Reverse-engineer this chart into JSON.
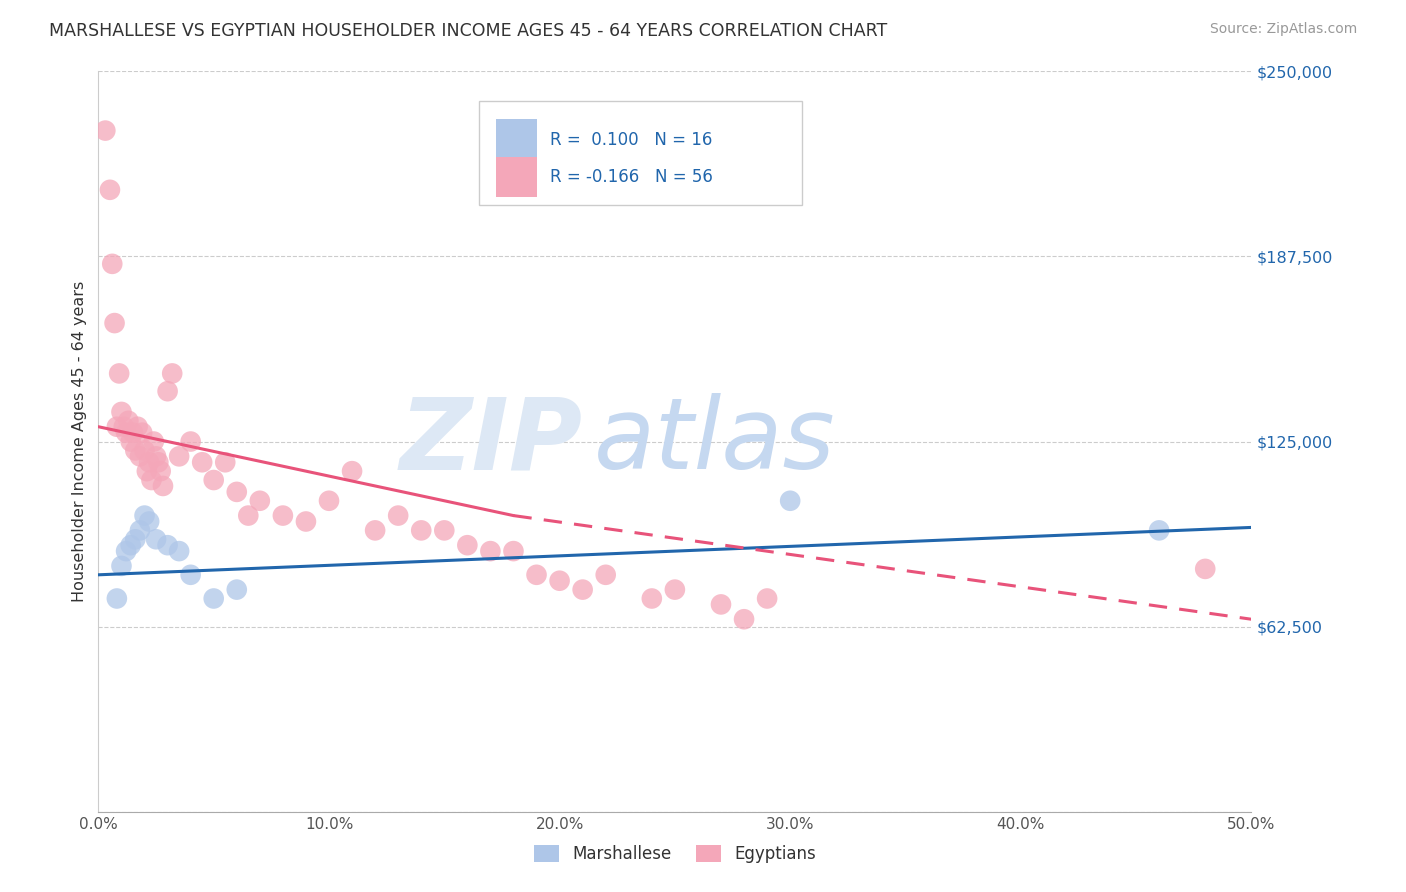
{
  "title": "MARSHALLESE VS EGYPTIAN HOUSEHOLDER INCOME AGES 45 - 64 YEARS CORRELATION CHART",
  "source": "Source: ZipAtlas.com",
  "ylabel": "Householder Income Ages 45 - 64 years",
  "xlim": [
    0.0,
    50.0
  ],
  "ylim": [
    0,
    250000
  ],
  "yticks": [
    0,
    62500,
    125000,
    187500,
    250000
  ],
  "ytick_labels": [
    "",
    "$62,500",
    "$125,000",
    "$187,500",
    "$250,000"
  ],
  "xticks": [
    0.0,
    10.0,
    20.0,
    30.0,
    40.0,
    50.0
  ],
  "xtick_labels": [
    "0.0%",
    "10.0%",
    "20.0%",
    "30.0%",
    "40.0%",
    "50.0%"
  ],
  "marshallese_label": "Marshallese",
  "egyptians_label": "Egyptians",
  "R_marshallese": 0.1,
  "N_marshallese": 16,
  "R_egyptians": -0.166,
  "N_egyptians": 56,
  "dot_color_blue": "#aec6e8",
  "dot_color_pink": "#f4a7b9",
  "line_color_blue": "#2166ac",
  "line_color_pink": "#e8537a",
  "watermark_zip_color": "#dde8f5",
  "watermark_atlas_color": "#c5d8f0",
  "background_color": "#ffffff",
  "marshallese_x": [
    0.8,
    1.0,
    1.2,
    1.4,
    1.6,
    1.8,
    2.0,
    2.2,
    2.5,
    3.0,
    3.5,
    4.0,
    5.0,
    6.0,
    30.0,
    46.0
  ],
  "marshallese_y": [
    72000,
    83000,
    88000,
    90000,
    92000,
    95000,
    100000,
    98000,
    92000,
    90000,
    88000,
    80000,
    72000,
    75000,
    105000,
    95000
  ],
  "egyptians_x": [
    0.3,
    0.5,
    0.6,
    0.7,
    0.8,
    0.9,
    1.0,
    1.1,
    1.2,
    1.3,
    1.4,
    1.5,
    1.6,
    1.7,
    1.8,
    1.9,
    2.0,
    2.1,
    2.2,
    2.3,
    2.4,
    2.5,
    2.6,
    2.7,
    2.8,
    3.0,
    3.2,
    3.5,
    4.0,
    4.5,
    5.0,
    5.5,
    6.0,
    6.5,
    7.0,
    8.0,
    9.0,
    10.0,
    11.0,
    12.0,
    13.0,
    14.0,
    15.0,
    16.0,
    17.0,
    18.0,
    19.0,
    20.0,
    21.0,
    22.0,
    24.0,
    25.0,
    27.0,
    28.0,
    29.0,
    48.0
  ],
  "egyptians_y": [
    230000,
    210000,
    185000,
    165000,
    130000,
    148000,
    135000,
    130000,
    128000,
    132000,
    125000,
    128000,
    122000,
    130000,
    120000,
    128000,
    122000,
    115000,
    118000,
    112000,
    125000,
    120000,
    118000,
    115000,
    110000,
    142000,
    148000,
    120000,
    125000,
    118000,
    112000,
    118000,
    108000,
    100000,
    105000,
    100000,
    98000,
    105000,
    115000,
    95000,
    100000,
    95000,
    95000,
    90000,
    88000,
    88000,
    80000,
    78000,
    75000,
    80000,
    72000,
    75000,
    70000,
    65000,
    72000,
    82000
  ]
}
